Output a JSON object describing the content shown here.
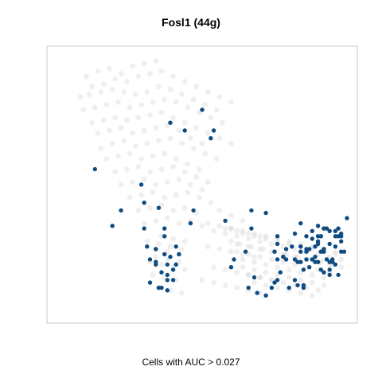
{
  "chart_data": {
    "type": "scatter",
    "title": "Fosl1 (44g)",
    "xlabel": "Cells with AUC > 0.027",
    "ylabel": "",
    "axes_visible": false,
    "grid": false,
    "legend": "none",
    "colors": {
      "highlight": "#0f4c81",
      "background": "#d0d0d0",
      "frame": "#c8c8c8"
    },
    "xlim": [
      0,
      100
    ],
    "ylim": [
      0,
      100
    ],
    "series": [
      {
        "name": "",
        "role": "highlighted",
        "x": [
          50,
          44,
          54,
          53,
          39,
          13,
          29,
          22,
          19,
          30,
          35,
          47,
          37,
          41,
          46,
          31,
          32,
          37,
          30,
          38,
          37,
          34,
          35,
          36,
          34,
          38,
          40,
          32,
          40,
          41,
          38,
          38,
          39,
          34,
          42,
          36,
          58,
          61,
          65,
          67,
          60,
          66,
          76,
          77,
          76,
          75,
          76,
          75,
          68,
          69,
          72,
          74,
          76,
          85,
          84,
          94,
          98,
          99,
          96,
          90,
          82,
          84,
          82,
          83,
          86,
          84,
          81,
          91,
          94,
          93,
          94,
          89,
          90,
          96,
          97,
          98,
          98,
          91,
          92,
          93,
          94,
          91,
          88,
          85,
          79,
          79,
          82,
          84,
          85,
          88,
          87,
          89,
          90,
          92,
          95,
          96,
          97,
          98,
          90,
          92,
          86,
          83,
          86,
          91,
          97,
          78,
          78,
          80,
          67,
          72,
          86,
          87,
          89,
          92,
          90,
          95,
          100,
          96,
          92,
          94,
          88
        ],
        "y": [
          79,
          71,
          71,
          68,
          74,
          56,
          50,
          40,
          34,
          43,
          41,
          40,
          30,
          26,
          35,
          26,
          21,
          33,
          33,
          13,
          23,
          20,
          10,
          16,
          19,
          15,
          13,
          12,
          17,
          19,
          19,
          9,
          22,
          25,
          23,
          10,
          36,
          21,
          24,
          33,
          18,
          10,
          27,
          16,
          21,
          24,
          30,
          12,
          14,
          8,
          7,
          10,
          13,
          10,
          20,
          20,
          31,
          24,
          32,
          34,
          21,
          35,
          13,
          20,
          30,
          26,
          26,
          30,
          15,
          21,
          27,
          22,
          28,
          26,
          33,
          28,
          24,
          30,
          25,
          33,
          32,
          17,
          21,
          11,
          25,
          21,
          31,
          24,
          17,
          29,
          18,
          26,
          20,
          16,
          21,
          19,
          30,
          30,
          27,
          24,
          21,
          11,
          24,
          24,
          15,
          22,
          22,
          10,
          40,
          39,
          25,
          25,
          20,
          33,
          30,
          20,
          37,
          30,
          33,
          17,
          32
        ]
      },
      {
        "name": "",
        "role": "background",
        "x": [
          10,
          14,
          18,
          22,
          26,
          30,
          34,
          12,
          16,
          20,
          24,
          28,
          32,
          36,
          40,
          44,
          48,
          52,
          56,
          60,
          8,
          11,
          15,
          19,
          23,
          27,
          31,
          35,
          39,
          43,
          47,
          51,
          55,
          9,
          13,
          17,
          21,
          25,
          29,
          33,
          37,
          41,
          45,
          49,
          53,
          57,
          12,
          16,
          20,
          24,
          28,
          32,
          36,
          40,
          44,
          48,
          52,
          56,
          60,
          14,
          18,
          22,
          26,
          30,
          34,
          38,
          42,
          46,
          50,
          15,
          19,
          23,
          27,
          31,
          35,
          39,
          43,
          47,
          51,
          55,
          17,
          21,
          25,
          29,
          33,
          37,
          41,
          45,
          49,
          20,
          24,
          28,
          32,
          36,
          40,
          44,
          48,
          52,
          22,
          26,
          30,
          34,
          38,
          42,
          46,
          50,
          25,
          29,
          33,
          37,
          41,
          45,
          49,
          53,
          28,
          32,
          36,
          40,
          44,
          48,
          30,
          34,
          38,
          42,
          46,
          50,
          54,
          58,
          62,
          66,
          70,
          74,
          78,
          82,
          86,
          90,
          94,
          98,
          60,
          64,
          68,
          72,
          76,
          80,
          84,
          88,
          92,
          96,
          62,
          66,
          70,
          74,
          78,
          82,
          86,
          90,
          94,
          98,
          64,
          68,
          72,
          76,
          80,
          84,
          88,
          92,
          60,
          63,
          67,
          71,
          75,
          79,
          83,
          87,
          91,
          95,
          62,
          66,
          70,
          74,
          78,
          82,
          86,
          90,
          94,
          64,
          68,
          72,
          76,
          80,
          84,
          88,
          92,
          66,
          70,
          74,
          78,
          82,
          86,
          90,
          68,
          72,
          76,
          80,
          84,
          88,
          36,
          40,
          44,
          34,
          38,
          42,
          32,
          36,
          40,
          44,
          33,
          37,
          41,
          35,
          39,
          43,
          31,
          35,
          39,
          43,
          34,
          38,
          42,
          56,
          60,
          64,
          58,
          62,
          66,
          70,
          52,
          56,
          60,
          64,
          68,
          54,
          58,
          62,
          66,
          70,
          74,
          50,
          54,
          58,
          62,
          66,
          70,
          52,
          56,
          60,
          64,
          68,
          72,
          76,
          80,
          84,
          88,
          92,
          96
        ],
        "y": [
          92,
          94,
          95,
          93,
          96,
          97,
          98,
          88,
          89,
          91,
          90,
          92,
          93,
          94,
          92,
          90,
          88,
          86,
          84,
          82,
          84,
          85,
          86,
          87,
          86,
          85,
          86,
          88,
          87,
          85,
          83,
          81,
          79,
          79,
          80,
          81,
          82,
          80,
          81,
          82,
          83,
          82,
          80,
          78,
          76,
          74,
          74,
          75,
          76,
          75,
          76,
          77,
          78,
          76,
          74,
          72,
          70,
          68,
          66,
          70,
          71,
          72,
          70,
          71,
          72,
          73,
          71,
          68,
          66,
          64,
          66,
          67,
          65,
          66,
          67,
          68,
          66,
          64,
          62,
          60,
          60,
          61,
          62,
          60,
          61,
          62,
          60,
          58,
          56,
          55,
          56,
          57,
          55,
          56,
          57,
          55,
          53,
          51,
          50,
          51,
          52,
          50,
          51,
          52,
          50,
          48,
          45,
          46,
          47,
          45,
          46,
          47,
          45,
          43,
          40,
          41,
          42,
          40,
          41,
          39,
          35,
          36,
          37,
          35,
          36,
          34,
          32,
          31,
          30,
          29,
          28,
          27,
          26,
          25,
          24,
          23,
          22,
          21,
          33,
          31,
          30,
          29,
          28,
          27,
          26,
          25,
          24,
          23,
          27,
          26,
          25,
          24,
          23,
          22,
          21,
          20,
          19,
          18,
          21,
          20,
          19,
          18,
          17,
          16,
          15,
          14,
          28,
          27,
          26,
          25,
          24,
          23,
          22,
          21,
          20,
          19,
          24,
          23,
          22,
          21,
          20,
          19,
          18,
          17,
          16,
          18,
          17,
          16,
          15,
          14,
          13,
          12,
          11,
          15,
          14,
          13,
          12,
          11,
          10,
          9,
          12,
          11,
          10,
          9,
          8,
          7,
          30,
          29,
          28,
          25,
          24,
          23,
          20,
          19,
          18,
          17,
          15,
          14,
          13,
          10,
          9,
          8,
          28,
          27,
          26,
          25,
          22,
          21,
          20,
          40,
          38,
          36,
          33,
          32,
          31,
          30,
          26,
          25,
          24,
          23,
          22,
          18,
          17,
          16,
          15,
          14,
          13,
          13,
          12,
          11,
          10,
          9,
          8,
          35,
          34,
          33,
          32,
          31,
          30,
          29,
          28,
          27,
          26,
          25,
          24
        ]
      }
    ]
  }
}
